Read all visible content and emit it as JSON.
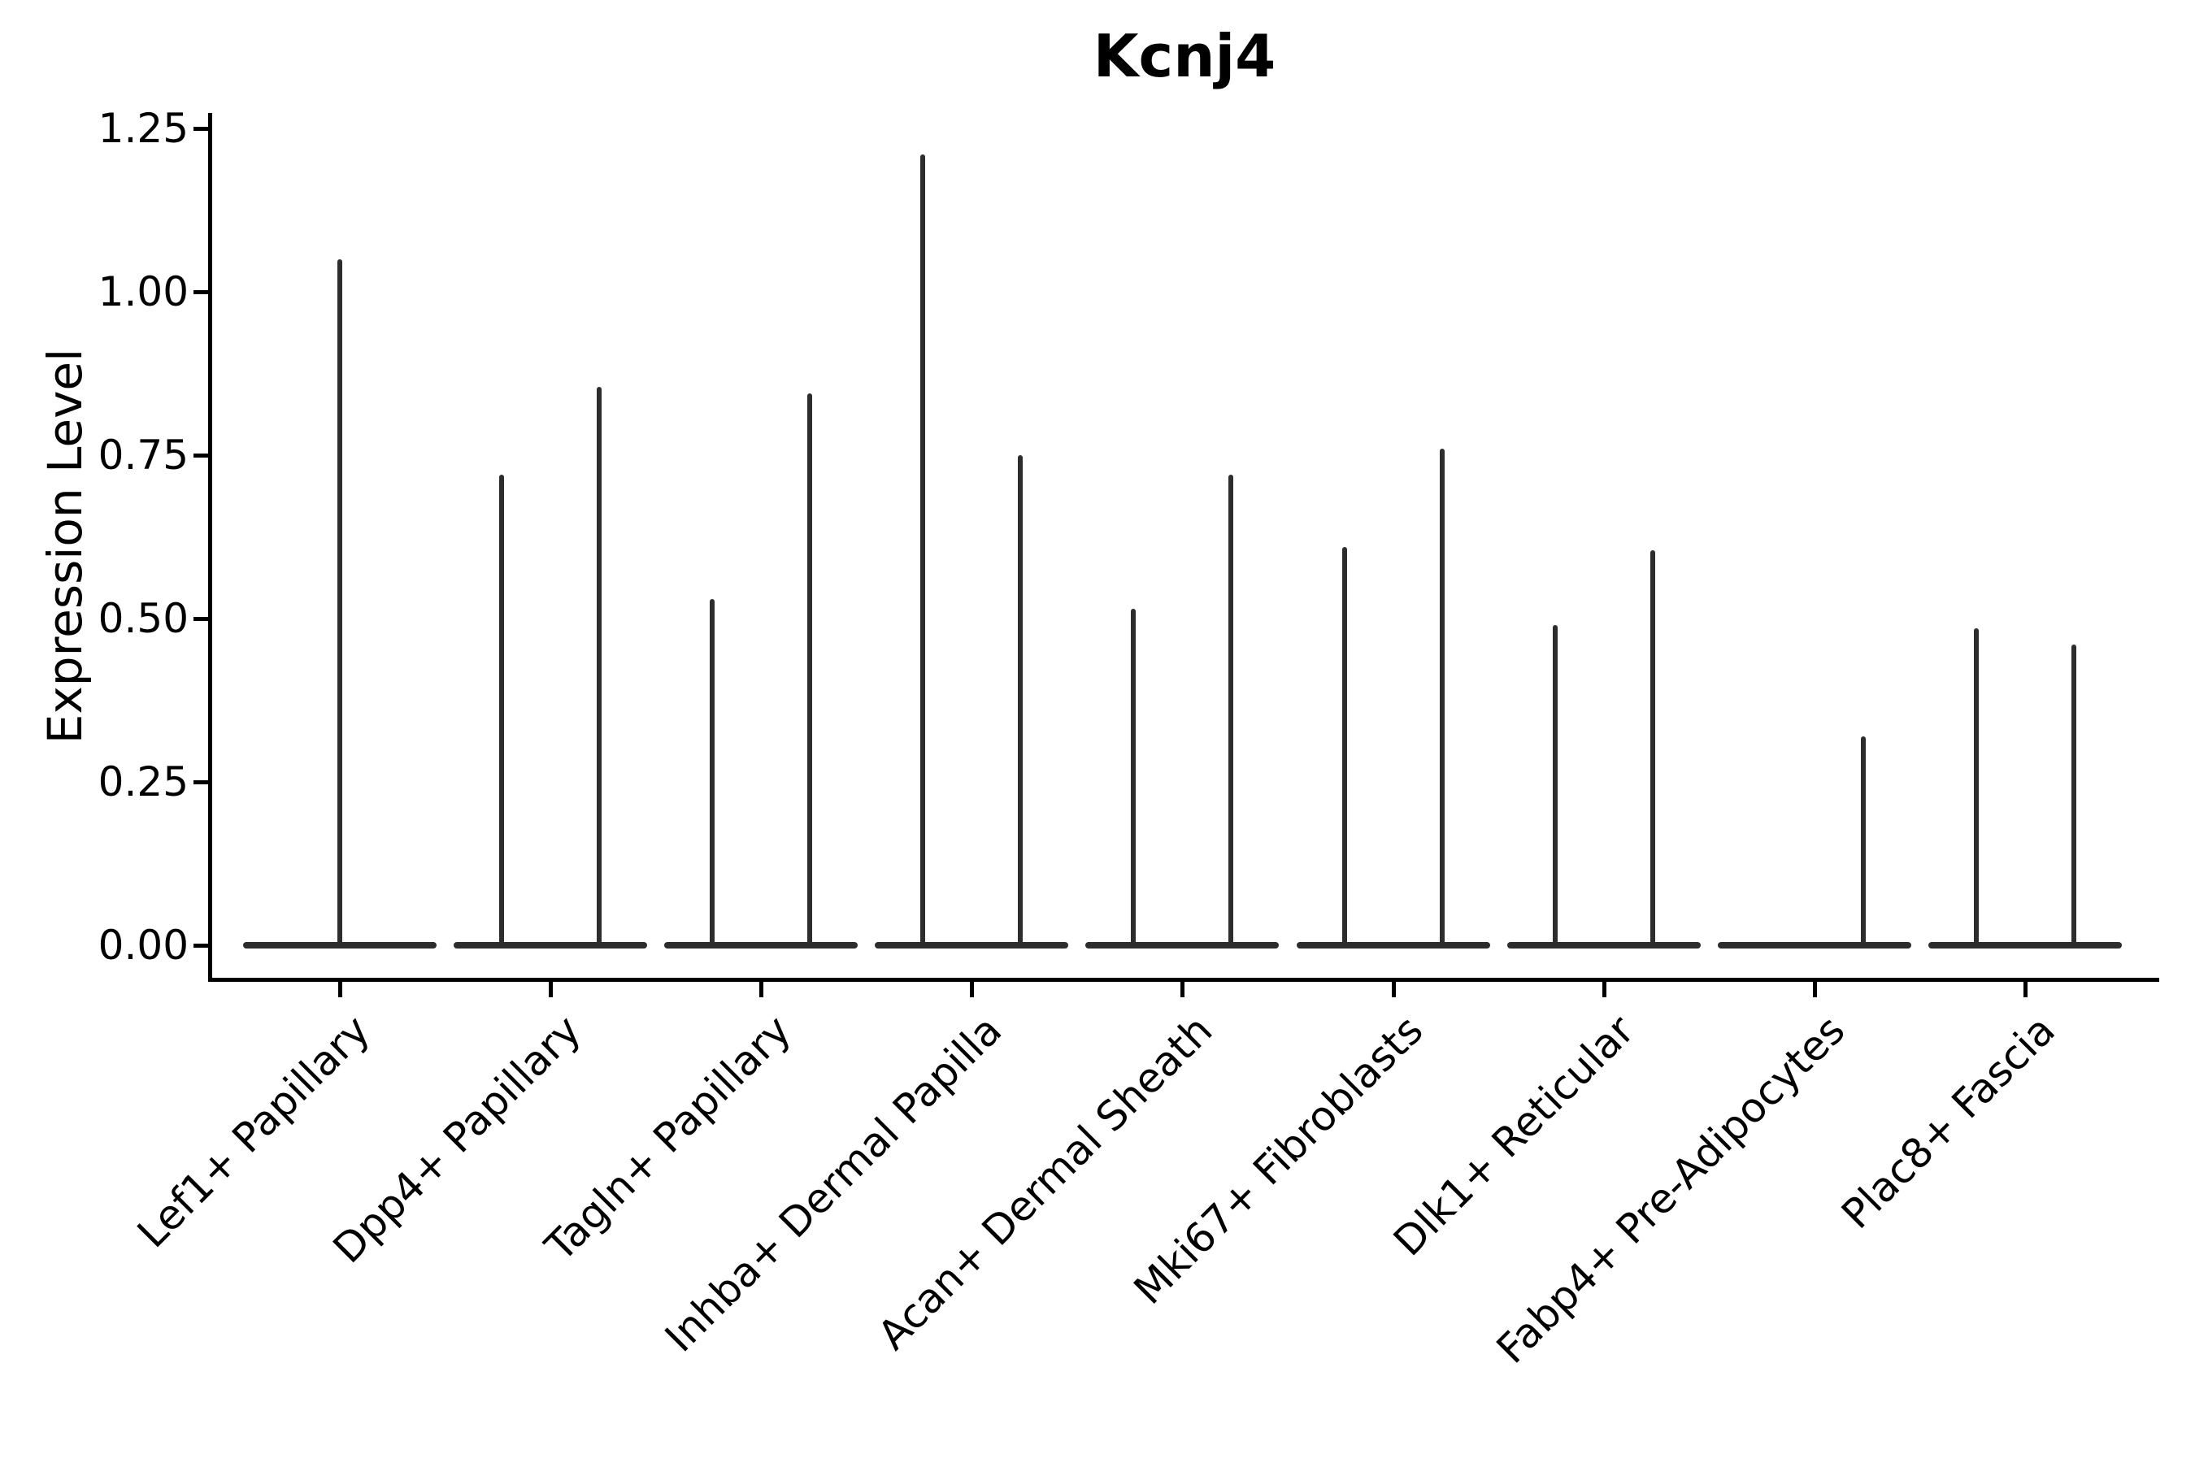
{
  "chart_data": {
    "type": "violin",
    "title": "Kcnj4",
    "ylabel": "Expression Level",
    "xlabel": "",
    "grid": false,
    "legend": null,
    "ylim": [
      -0.05,
      1.27
    ],
    "yticks": [
      {
        "label": "0.00",
        "value": 0.0
      },
      {
        "label": "0.25",
        "value": 0.25
      },
      {
        "label": "0.50",
        "value": 0.5
      },
      {
        "label": "0.75",
        "value": 0.75
      },
      {
        "label": "1.00",
        "value": 1.0
      },
      {
        "label": "1.25",
        "value": 1.25
      }
    ],
    "categories": [
      "Lef1+ Papillary",
      "Dpp4+ Papillary",
      "Tagln+ Papillary",
      "Inhba+ Dermal Papilla",
      "Acan+ Dermal Sheath",
      "Mki67+ Fibroblasts",
      "Dlk1+ Reticular",
      "Fabp4+ Pre-Adipocytes",
      "Plac8+ Fascia"
    ],
    "violins": [
      {
        "category": "Lef1+ Papillary",
        "base_value": 0.0,
        "spikes": [
          {
            "offset": 0,
            "max": 1.05
          }
        ]
      },
      {
        "category": "Dpp4+ Papillary",
        "base_value": 0.0,
        "spikes": [
          {
            "offset": -1,
            "max": 0.72
          },
          {
            "offset": 1,
            "max": 0.855
          }
        ]
      },
      {
        "category": "Tagln+ Papillary",
        "base_value": 0.0,
        "spikes": [
          {
            "offset": -1,
            "max": 0.53
          },
          {
            "offset": 1,
            "max": 0.845
          }
        ]
      },
      {
        "category": "Inhba+ Dermal Papilla",
        "base_value": 0.0,
        "spikes": [
          {
            "offset": -1,
            "max": 1.21
          },
          {
            "offset": 1,
            "max": 0.75
          }
        ]
      },
      {
        "category": "Acan+ Dermal Sheath",
        "base_value": 0.0,
        "spikes": [
          {
            "offset": -1,
            "max": 0.515
          },
          {
            "offset": 1,
            "max": 0.72
          }
        ]
      },
      {
        "category": "Mki67+ Fibroblasts",
        "base_value": 0.0,
        "spikes": [
          {
            "offset": -1,
            "max": 0.61
          },
          {
            "offset": 1,
            "max": 0.76
          }
        ]
      },
      {
        "category": "Dlk1+ Reticular",
        "base_value": 0.0,
        "spikes": [
          {
            "offset": -1,
            "max": 0.49
          },
          {
            "offset": 1,
            "max": 0.605
          }
        ]
      },
      {
        "category": "Fabp4+ Pre-Adipocytes",
        "base_value": 0.0,
        "spikes": [
          {
            "offset": 1,
            "max": 0.32
          }
        ]
      },
      {
        "category": "Plac8+ Fascia",
        "base_value": 0.0,
        "spikes": [
          {
            "offset": -1,
            "max": 0.485
          },
          {
            "offset": 1,
            "max": 0.46
          }
        ]
      }
    ],
    "colors": {
      "violin": "#2d2d2d",
      "axis": "#000000",
      "text": "#000000",
      "background": "#ffffff"
    }
  }
}
